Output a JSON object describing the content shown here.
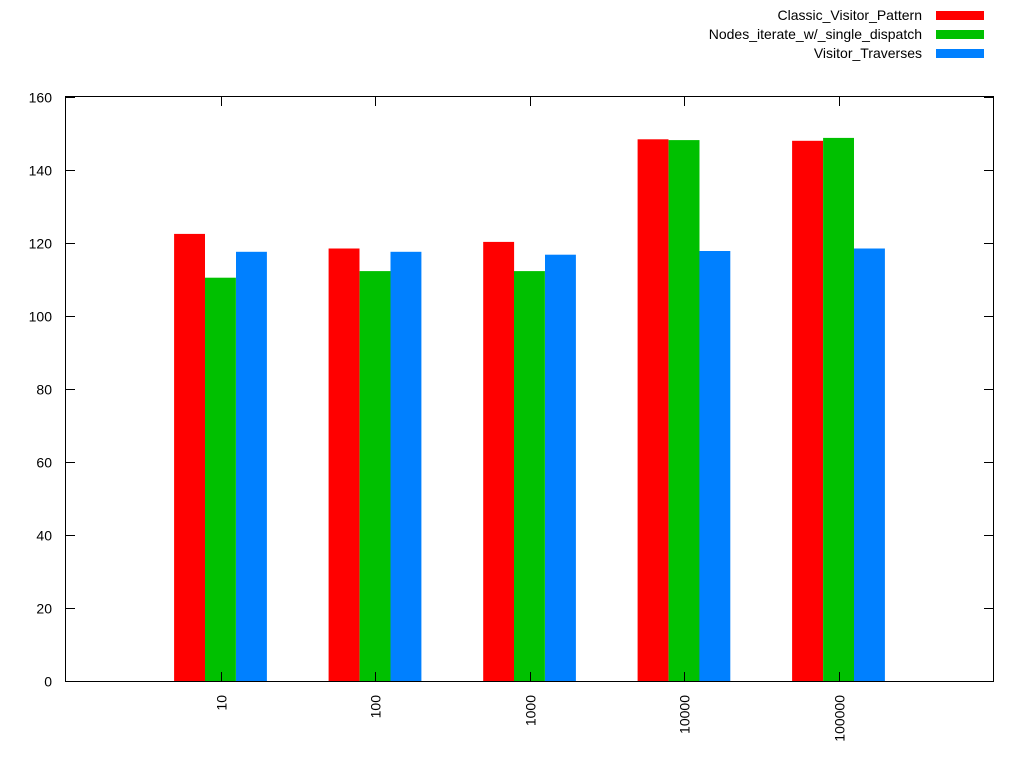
{
  "chart_data": {
    "type": "bar",
    "categories": [
      "10",
      "100",
      "1000",
      "10000",
      "100000"
    ],
    "series": [
      {
        "name": "Classic_Visitor_Pattern",
        "color": "#ff0000",
        "values": [
          122.5,
          118.5,
          120.3,
          148.4,
          148.0
        ]
      },
      {
        "name": "Nodes_iterate_w/_single_dispatch",
        "color": "#00c000",
        "values": [
          110.5,
          112.3,
          112.3,
          148.2,
          148.8
        ]
      },
      {
        "name": "Visitor_Traverses",
        "color": "#0080ff",
        "values": [
          117.6,
          117.6,
          116.8,
          117.8,
          118.5
        ]
      }
    ],
    "ylim": [
      0,
      160
    ],
    "yticks": [
      0,
      20,
      40,
      60,
      80,
      100,
      120,
      140,
      160
    ],
    "xlim": [
      -1,
      5
    ],
    "legend": "top-right",
    "grid": false
  }
}
